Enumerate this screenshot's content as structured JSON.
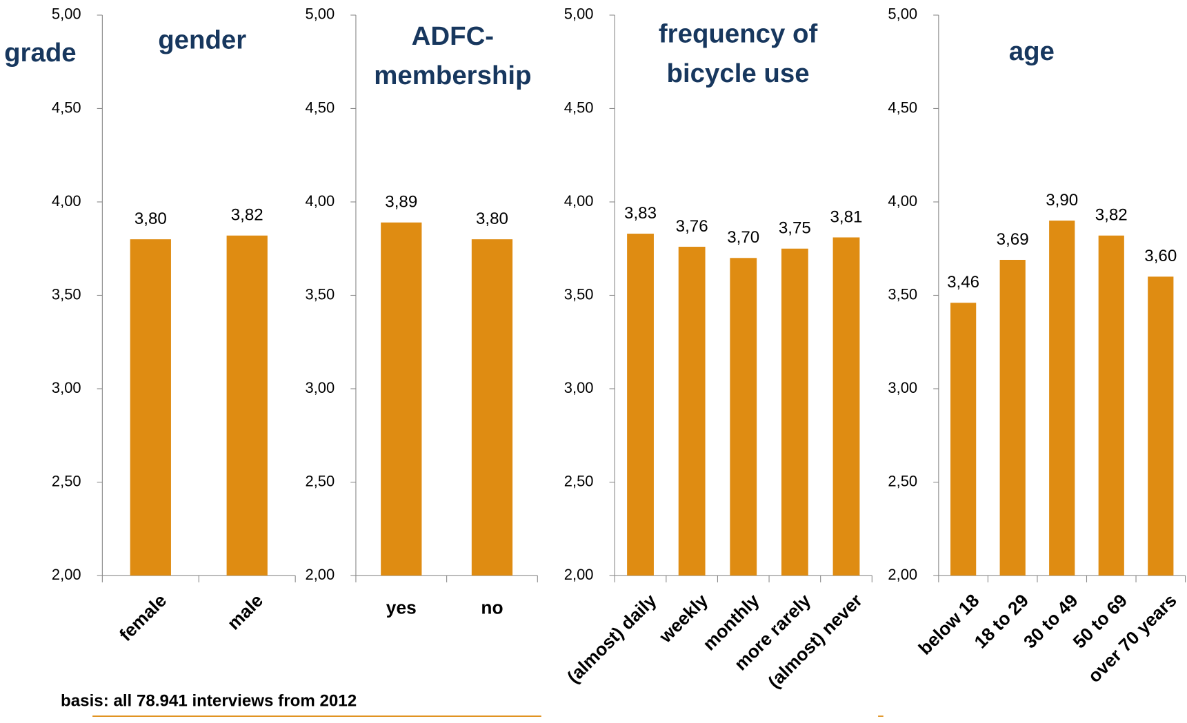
{
  "chart_data": [
    {
      "type": "bar",
      "title": [
        "gender"
      ],
      "ylabel": "grade",
      "categories": [
        "female",
        "male"
      ],
      "values": [
        3.8,
        3.82
      ],
      "value_labels": [
        "3,80",
        "3,82"
      ],
      "color": "#df8c12",
      "ylim": [
        2,
        5
      ],
      "yticks": [
        {
          "value": 2,
          "label": "2,00"
        },
        {
          "value": 2.5,
          "label": "2,50"
        },
        {
          "value": 3,
          "label": "3,00"
        },
        {
          "value": 3.5,
          "label": "3,50"
        },
        {
          "value": 4,
          "label": "4,00"
        },
        {
          "value": 4.5,
          "label": "4,50"
        },
        {
          "value": 5,
          "label": "5,00"
        }
      ],
      "x_label_rotation": -45
    },
    {
      "type": "bar",
      "title": [
        "ADFC-",
        "membership"
      ],
      "categories": [
        "yes",
        "no"
      ],
      "values": [
        3.89,
        3.8
      ],
      "value_labels": [
        "3,89",
        "3,80"
      ],
      "color": "#df8c12",
      "ylim": [
        2,
        5
      ],
      "yticks": [
        {
          "value": 2,
          "label": "2,00"
        },
        {
          "value": 2.5,
          "label": "2,50"
        },
        {
          "value": 3,
          "label": "3,00"
        },
        {
          "value": 3.5,
          "label": "3,50"
        },
        {
          "value": 4,
          "label": "4,00"
        },
        {
          "value": 4.5,
          "label": "4,50"
        },
        {
          "value": 5,
          "label": "5,00"
        }
      ],
      "x_label_rotation": 0
    },
    {
      "type": "bar",
      "title": [
        "frequency of",
        "bicycle use"
      ],
      "categories": [
        "(almost) daily",
        "weekly",
        "monthly",
        "more rarely",
        "(almost) never"
      ],
      "values": [
        3.83,
        3.76,
        3.7,
        3.75,
        3.81
      ],
      "value_labels": [
        "3,83",
        "3,76",
        "3,70",
        "3,75",
        "3,81"
      ],
      "color": "#df8c12",
      "ylim": [
        2,
        5
      ],
      "yticks": [
        {
          "value": 2,
          "label": "2,00"
        },
        {
          "value": 2.5,
          "label": "2,50"
        },
        {
          "value": 3,
          "label": "3,00"
        },
        {
          "value": 3.5,
          "label": "3,50"
        },
        {
          "value": 4,
          "label": "4,00"
        },
        {
          "value": 4.5,
          "label": "4,50"
        },
        {
          "value": 5,
          "label": "5,00"
        }
      ],
      "x_label_rotation": -45
    },
    {
      "type": "bar",
      "title": [
        "age"
      ],
      "categories": [
        "below 18",
        "18 to 29",
        "30 to 49",
        "50 to 69",
        "over 70 years"
      ],
      "values": [
        3.46,
        3.69,
        3.9,
        3.82,
        3.6
      ],
      "value_labels": [
        "3,46",
        "3,69",
        "3,90",
        "3,82",
        "3,60"
      ],
      "color": "#df8c12",
      "ylim": [
        2,
        5
      ],
      "yticks": [
        {
          "value": 2,
          "label": "2,00"
        },
        {
          "value": 2.5,
          "label": "2,50"
        },
        {
          "value": 3,
          "label": "3,00"
        },
        {
          "value": 3.5,
          "label": "3,50"
        },
        {
          "value": 4,
          "label": "4,00"
        },
        {
          "value": 4.5,
          "label": "4,50"
        },
        {
          "value": 5,
          "label": "5,00"
        }
      ],
      "x_label_rotation": -45
    }
  ],
  "footnote": "basis: all 78.941 interviews from 2012"
}
